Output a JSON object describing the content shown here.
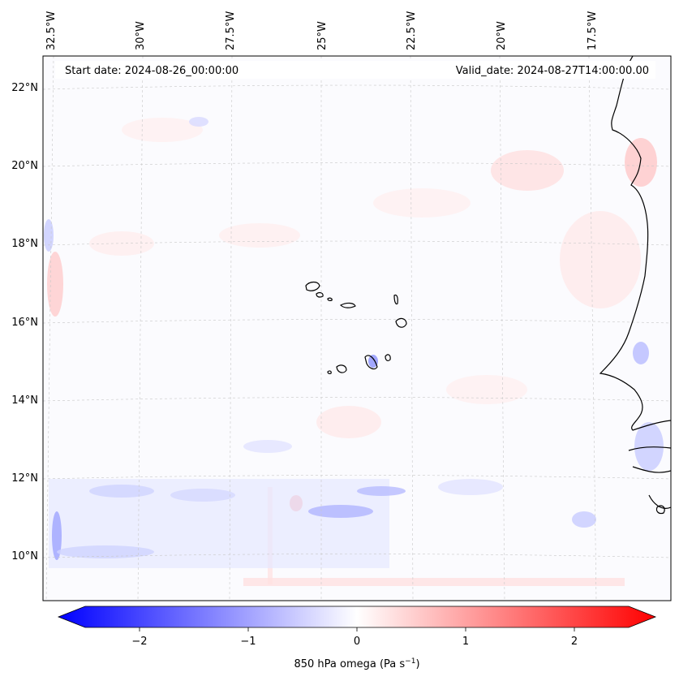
{
  "header": {
    "start_date": "Start date: 2024-08-26_00:00:00",
    "valid_date": "Valid_date: 2024-08-27T14:00:00.00"
  },
  "map": {
    "lon_labels": [
      "32.5°W",
      "30°W",
      "27.5°W",
      "25°W",
      "22.5°W",
      "20°W",
      "17.5°W"
    ],
    "lat_labels": [
      "22°N",
      "20°N",
      "18°N",
      "16°N",
      "14°N",
      "12°N",
      "10°N"
    ],
    "lon_range": [
      -33.0,
      -15.5
    ],
    "lat_range": [
      8.9,
      22.8
    ]
  },
  "colorbar": {
    "ticks": [
      "−2",
      "−1",
      "0",
      "1",
      "2"
    ],
    "tick_values": [
      -2,
      -1,
      0,
      1,
      2
    ],
    "range": [
      -2.5,
      2.5
    ],
    "label_main": "850 hPa omega (Pa s",
    "label_sup": "−1",
    "label_end": ")",
    "negative_color": "#0000ff",
    "zero_color": "#ffffff",
    "positive_color": "#ff0000"
  },
  "colors": {
    "coastline": "#000000",
    "gridline": "#c8c8c8",
    "background": "#fbfbfe"
  }
}
